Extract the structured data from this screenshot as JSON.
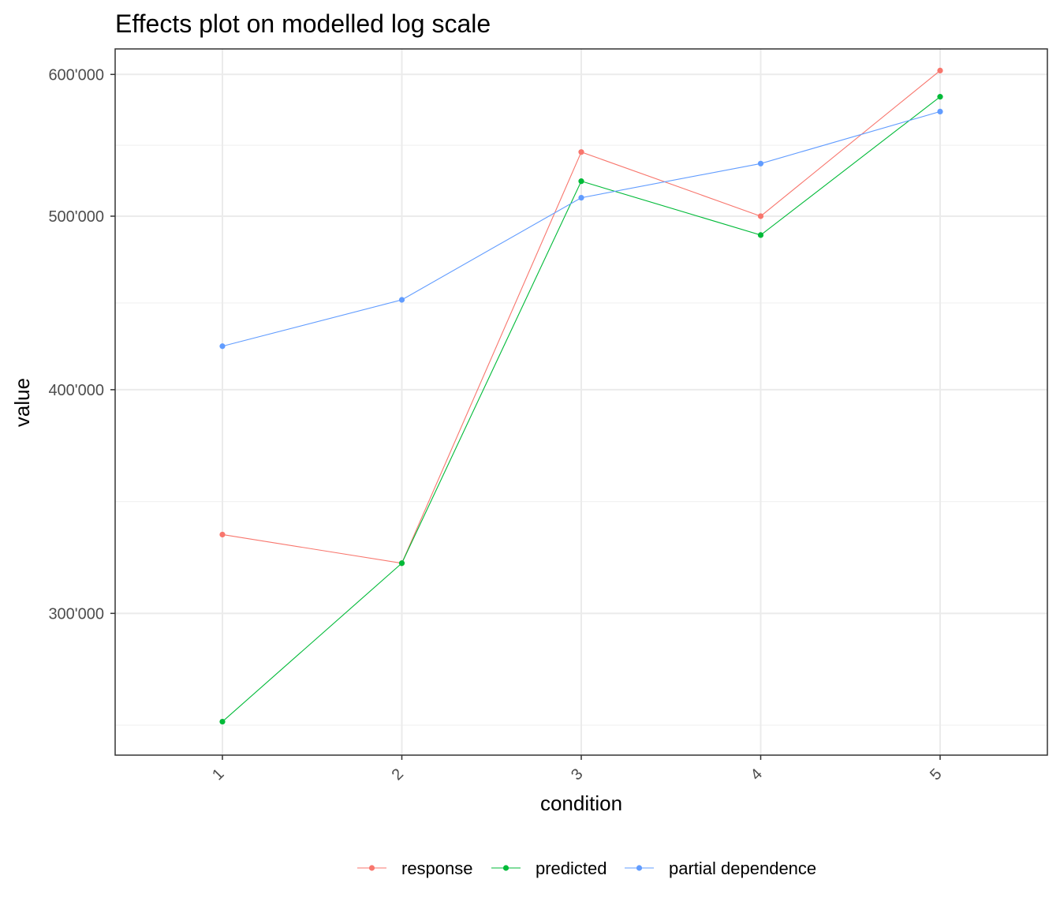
{
  "chart_data": {
    "type": "line",
    "title": "Effects plot on modelled log scale",
    "xlabel": "condition",
    "ylabel": "value",
    "categories": [
      "1",
      "2",
      "3",
      "4",
      "5"
    ],
    "y_scale": "log",
    "ylim": [
      250000,
      620000
    ],
    "yticks": [
      300000,
      400000,
      500000,
      600000
    ],
    "ytick_labels": [
      "300'000",
      "400'000",
      "500'000",
      "600'000"
    ],
    "grid": true,
    "legend_position": "bottom",
    "series": [
      {
        "name": "response",
        "color": "#F8766D",
        "values": [
          332000,
          320000,
          543000,
          500000,
          603000
        ]
      },
      {
        "name": "predicted",
        "color": "#00BA38",
        "values": [
          261000,
          320000,
          523000,
          488000,
          583000
        ]
      },
      {
        "name": "partial dependence",
        "color": "#619CFF",
        "values": [
          423000,
          449000,
          512000,
          535000,
          572000
        ]
      }
    ]
  }
}
